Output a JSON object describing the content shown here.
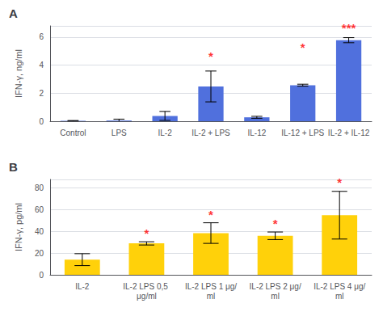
{
  "chart_data": [
    {
      "type": "bar",
      "title": "A",
      "categories": [
        "Control",
        "LPS",
        "IL-2",
        "IL-2 + LPS",
        "IL-12",
        "IL-12 + LPS",
        "IL-2 + IL-12"
      ],
      "values": [
        0.03,
        0.05,
        0.38,
        2.48,
        0.28,
        2.57,
        5.78
      ],
      "errors": [
        0.02,
        0.1,
        0.32,
        1.1,
        0.07,
        0.07,
        0.18
      ],
      "ylabel": "IFN-γ, ng/ml",
      "ylim": [
        0,
        6.8
      ],
      "yticks": [
        0,
        2,
        4,
        6
      ],
      "grid": true,
      "annotations": [
        {
          "category": "IL-2 + LPS",
          "y": 4.2,
          "text": "*",
          "color": "red"
        },
        {
          "category": "IL-12 + LPS",
          "y": 4.85,
          "text": "*",
          "color": "red"
        },
        {
          "category": "IL-2 + IL-12",
          "y": 6.25,
          "text": "***",
          "color": "red"
        }
      ]
    },
    {
      "type": "bar",
      "title": "B",
      "categories": [
        "IL-2",
        "IL-2 LPS 0,5 μg/ml",
        "IL-2 LPS 1 μg/ml",
        "IL-2 LPS 2 μg/ml",
        "IL-2 LPS 4 μg/ml"
      ],
      "values": [
        14.0,
        29.0,
        38.5,
        36.0,
        55.0
      ],
      "errors": [
        5.5,
        1.5,
        9.5,
        3.5,
        22.0
      ],
      "ylabel": "IFN-γ, pg/ml",
      "ylim": [
        0,
        88
      ],
      "yticks": [
        0,
        20,
        40,
        60,
        80
      ],
      "grid": true,
      "annotations": [
        {
          "category": "IL-2 LPS 0,5 μg/ml",
          "y": 33,
          "text": "*",
          "color": "red"
        },
        {
          "category": "IL-2 LPS 1 μg/ml",
          "y": 50,
          "text": "*",
          "color": "red"
        },
        {
          "category": "IL-2 LPS 2 μg/ml",
          "y": 42,
          "text": "*",
          "color": "red"
        },
        {
          "category": "IL-2 LPS 4 μg/ml",
          "y": 80,
          "text": "*",
          "color": "red"
        }
      ]
    }
  ]
}
